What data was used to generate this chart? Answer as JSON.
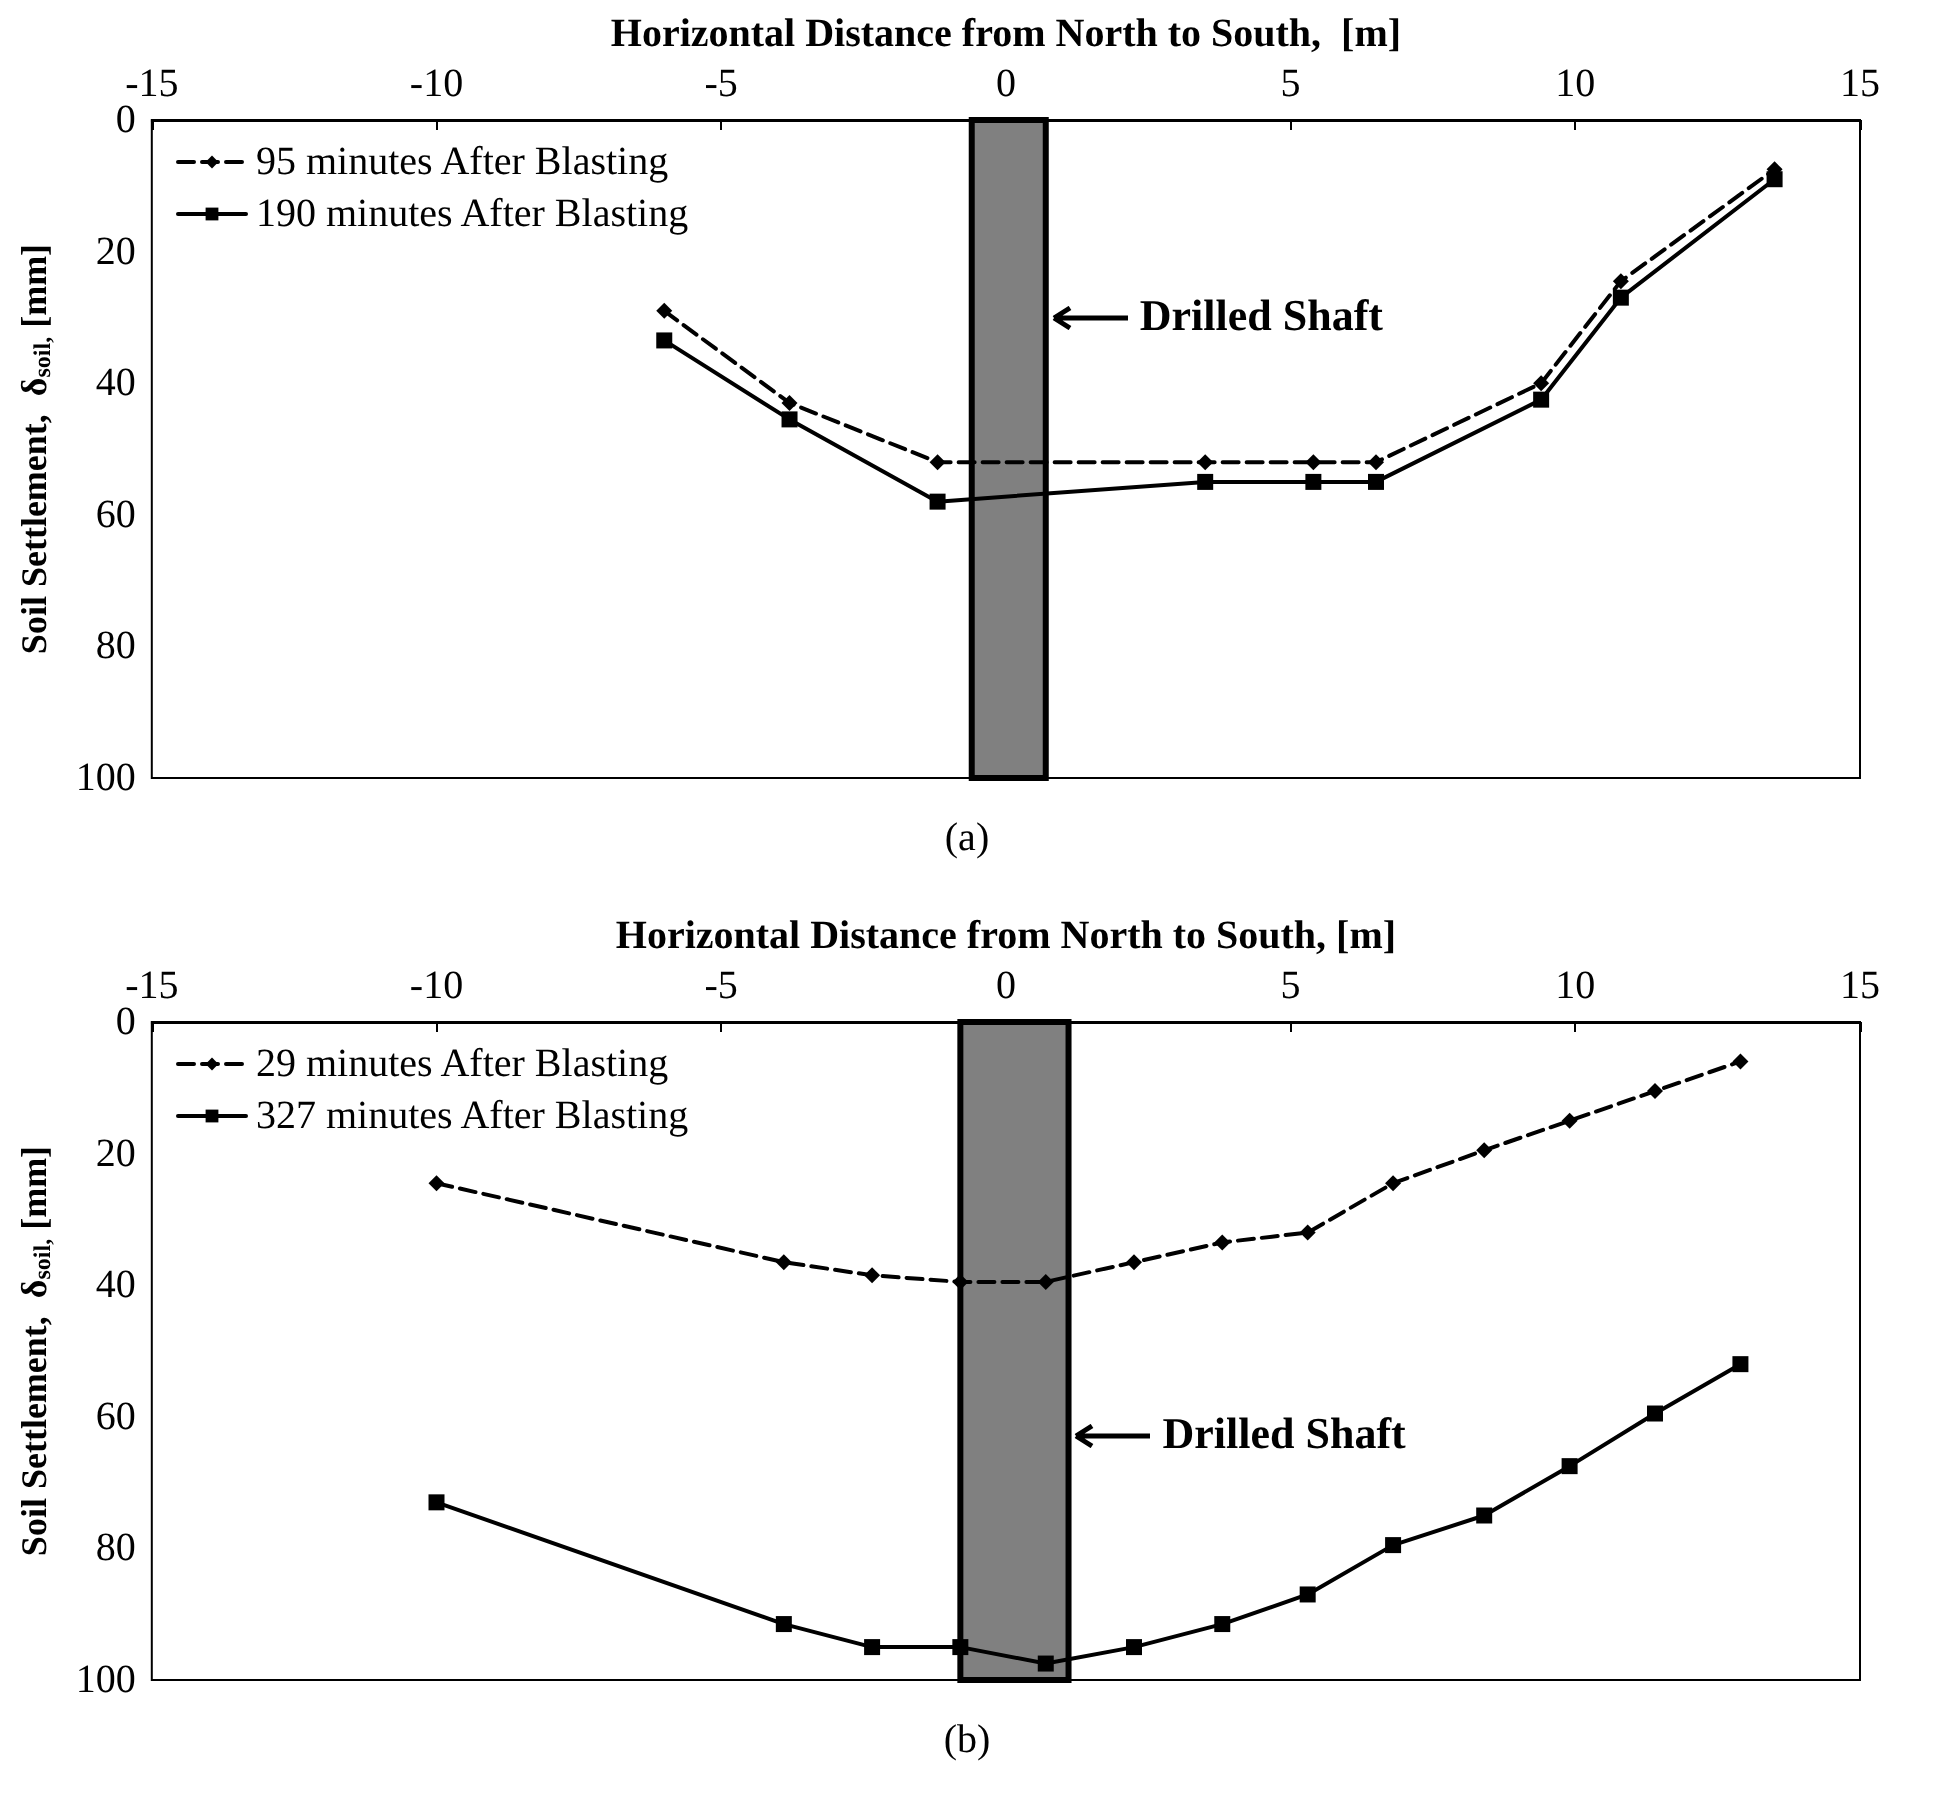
{
  "chart_data": [
    {
      "type": "line",
      "xlabel": "Horizontal Distance from North to South,  [m]",
      "ylabel": "Soil Settlement,  δ$_{soil,}$ [mm]",
      "annotations": [
        "(a)"
      ],
      "xlim": [
        -15,
        15
      ],
      "xticks": [
        -15,
        -10,
        -5,
        0,
        5,
        10,
        15
      ],
      "ylim": [
        100,
        0
      ],
      "yticks": [
        0,
        20,
        40,
        60,
        80,
        100
      ],
      "grid": false,
      "legend": "top left",
      "bands": [
        {
          "axis": "x",
          "from": -0.6,
          "to": 0.7,
          "label": "Drilled Shaft",
          "color": "#808080"
        }
      ],
      "series": [
        {
          "name": "95 minutes After Blasting",
          "color": "#000000",
          "marker": "diamond",
          "line_style": "dashed",
          "x": [
            -6,
            -3.8,
            -1.2,
            3.5,
            5.4,
            6.5,
            9.4,
            10.8,
            13.5
          ],
          "values": [
            29,
            43,
            52,
            52,
            52,
            52,
            40,
            24.5,
            7.5
          ]
        },
        {
          "name": "190 minutes After Blasting",
          "color": "#000000",
          "marker": "square",
          "line_style": "solid",
          "x": [
            -6,
            -3.8,
            -1.2,
            3.5,
            5.4,
            6.5,
            9.4,
            10.8,
            13.5
          ],
          "values": [
            33.5,
            45.5,
            58,
            55,
            55,
            55,
            42.5,
            27,
            9
          ]
        }
      ]
    },
    {
      "type": "line",
      "xlabel": "Horizontal Distance from North to South, [m]",
      "ylabel": "Soil Settlement,  δ$_{soil,}$ [mm]",
      "annotations": [
        "(b)"
      ],
      "xlim": [
        -15,
        15
      ],
      "xticks": [
        -15,
        -10,
        -5,
        0,
        5,
        10,
        15
      ],
      "ylim": [
        100,
        0
      ],
      "yticks": [
        0,
        20,
        40,
        60,
        80,
        100
      ],
      "grid": false,
      "legend": "top left",
      "bands": [
        {
          "axis": "x",
          "from": -0.8,
          "to": 1.1,
          "label": "Drilled Shaft",
          "color": "#808080"
        }
      ],
      "series": [
        {
          "name": "29 minutes After Blasting",
          "color": "#000000",
          "marker": "diamond",
          "line_style": "dashed",
          "x": [
            -10,
            -3.9,
            -2.35,
            -0.8,
            0.7,
            2.25,
            3.8,
            5.3,
            6.8,
            8.4,
            9.9,
            11.4,
            12.9
          ],
          "values": [
            24.5,
            36.5,
            38.5,
            39.5,
            39.5,
            36.5,
            33.5,
            32,
            24.5,
            19.5,
            15,
            10.5,
            6
          ]
        },
        {
          "name": "327 minutes After Blasting",
          "color": "#000000",
          "marker": "square",
          "line_style": "solid",
          "x": [
            -10,
            -3.9,
            -2.35,
            -0.8,
            0.7,
            2.25,
            3.8,
            5.3,
            6.8,
            8.4,
            9.9,
            11.4,
            12.9
          ],
          "values": [
            73,
            91.5,
            95,
            95,
            97.5,
            95,
            91.5,
            87,
            79.5,
            75,
            67.5,
            59.5,
            52
          ]
        }
      ]
    }
  ]
}
